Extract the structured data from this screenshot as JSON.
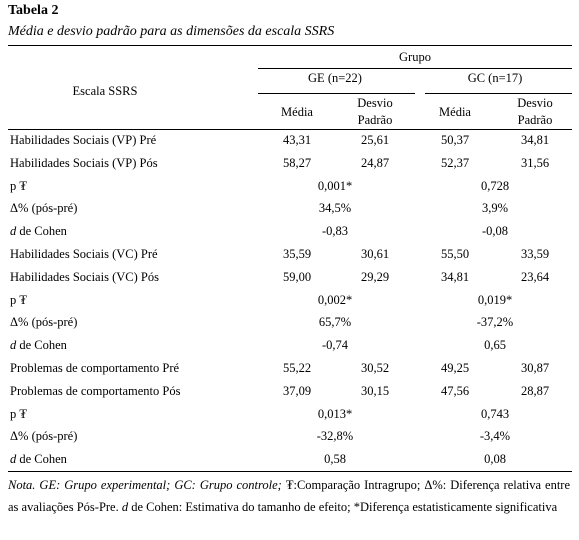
{
  "title": "Tabela 2",
  "subtitle": "Média e desvio padrão para as dimensões da escala SSRS",
  "table": {
    "group_header": "Grupo",
    "row_header": "Escala SSRS",
    "groups": [
      {
        "name": "GE (n=22)",
        "columns": [
          "Média",
          "Desvio Padrão"
        ]
      },
      {
        "name": "GC (n=17)",
        "columns": [
          "Média",
          "Desvio Padrão"
        ]
      }
    ],
    "rows": [
      {
        "label": "Habilidades Sociais (VP) Pré",
        "cells": [
          "43,31",
          "25,61",
          "50,37",
          "34,81"
        ]
      },
      {
        "label": "Habilidades Sociais (VP) Pós",
        "cells": [
          "58,27",
          "24,87",
          "52,37",
          "31,56"
        ]
      },
      {
        "label": "p ₮",
        "cells": [
          "0,001*",
          "0,728"
        ]
      },
      {
        "label": "Δ% (pós-pré)",
        "cells": [
          "34,5%",
          "3,9%"
        ]
      },
      {
        "label_italic": "d",
        "label": "de Cohen",
        "cells": [
          "-0,83",
          "-0,08"
        ]
      },
      {
        "label": "Habilidades Sociais (VC) Pré",
        "cells": [
          "35,59",
          "30,61",
          "55,50",
          "33,59"
        ]
      },
      {
        "label": "Habilidades Sociais (VC) Pós",
        "cells": [
          "59,00",
          "29,29",
          "34,81",
          "23,64"
        ]
      },
      {
        "label": "p ₮",
        "cells": [
          "0,002*",
          "0,019*"
        ]
      },
      {
        "label": "Δ% (pós-pré)",
        "cells": [
          "65,7%",
          "-37,2%"
        ]
      },
      {
        "label_italic": "d",
        "label": "de Cohen",
        "cells": [
          "-0,74",
          "0,65"
        ]
      },
      {
        "label": "Problemas de comportamento Pré",
        "cells": [
          "55,22",
          "30,52",
          "49,25",
          "30,87"
        ]
      },
      {
        "label": "Problemas de comportamento Pós",
        "cells": [
          "37,09",
          "30,15",
          "47,56",
          "28,87"
        ]
      },
      {
        "label": "p ₮",
        "cells": [
          "0,013*",
          "0,743"
        ]
      },
      {
        "label": "Δ% (pós-pré)",
        "cells": [
          "-32,8%",
          "-3,4%"
        ]
      },
      {
        "label_italic": "d",
        "label": "de Cohen",
        "cells": [
          "0,58",
          "0,08"
        ]
      }
    ]
  },
  "note": [
    {
      "text": "Nota. GE: Grupo experimental; GC: Grupo controle;",
      "italic": true
    },
    {
      "text": "₮:Comparação Intragrupo; Δ%: Diferença relativa entre as avaliações Pós-Pre.",
      "italic": false
    },
    {
      "text": "d",
      "italic": true
    },
    {
      "text": "de Cohen: Estimativa do tamanho de efeito; *Diferença estatisticamente significativa",
      "italic": false
    }
  ]
}
